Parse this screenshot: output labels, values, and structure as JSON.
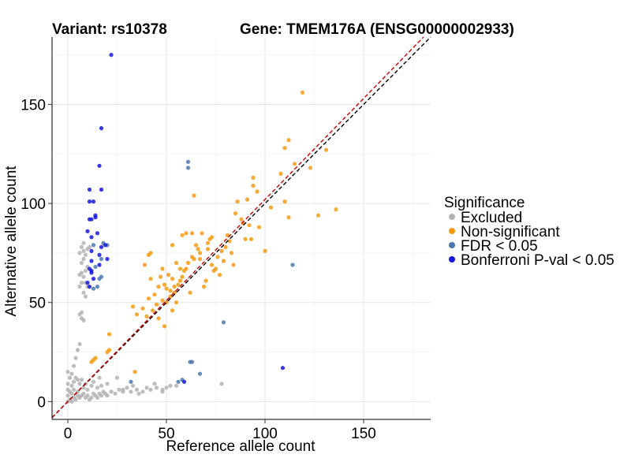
{
  "chart_data": {
    "type": "scatter",
    "title_variant": "Variant: rs10378",
    "title_gene": "Gene: TMEM176A (ENSG00000002933)",
    "xlabel": "Reference allele count",
    "ylabel": "Alternative allele count",
    "xlim": [
      -8,
      184
    ],
    "ylim": [
      -9,
      184
    ],
    "x_ticks": [
      0,
      50,
      100,
      150
    ],
    "y_ticks": [
      0,
      50,
      100,
      150
    ],
    "grid": true,
    "legend": {
      "title": "Significance",
      "placement": "right",
      "entries": [
        {
          "label": "Excluded",
          "color": "#b3b3b3"
        },
        {
          "label": "Non-significant",
          "color": "#f59a10"
        },
        {
          "label": "FDR < 0.05",
          "color": "#4a78b0"
        },
        {
          "label": "Bonferroni P-val < 0.05",
          "color": "#1515e0"
        }
      ]
    },
    "reference_lines": [
      {
        "slope": 1,
        "intercept": 0,
        "color": "#000000",
        "style": "dashed"
      },
      {
        "slope": 1.02,
        "intercept": 0,
        "color": "#cc0000",
        "style": "dashed"
      }
    ],
    "series": [
      {
        "name": "Excluded",
        "color": "#b3b3b3",
        "points": [
          [
            0,
            0
          ],
          [
            1,
            1
          ],
          [
            2,
            0
          ],
          [
            3,
            2
          ],
          [
            4,
            1
          ],
          [
            5,
            3
          ],
          [
            6,
            2
          ],
          [
            2,
            4
          ],
          [
            1,
            5
          ],
          [
            3,
            6
          ],
          [
            5,
            5
          ],
          [
            7,
            3
          ],
          [
            8,
            4
          ],
          [
            9,
            2
          ],
          [
            10,
            3
          ],
          [
            11,
            1
          ],
          [
            12,
            2
          ],
          [
            13,
            4
          ],
          [
            14,
            3
          ],
          [
            15,
            2
          ],
          [
            16,
            4
          ],
          [
            17,
            3
          ],
          [
            18,
            5
          ],
          [
            19,
            4
          ],
          [
            20,
            3
          ],
          [
            22,
            5
          ],
          [
            24,
            4
          ],
          [
            26,
            6
          ],
          [
            28,
            5
          ],
          [
            30,
            7
          ],
          [
            32,
            5
          ],
          [
            35,
            6
          ],
          [
            38,
            5
          ],
          [
            40,
            7
          ],
          [
            42,
            6
          ],
          [
            45,
            7
          ],
          [
            48,
            6
          ],
          [
            50,
            7
          ],
          [
            55,
            8
          ],
          [
            0,
            3
          ],
          [
            0,
            6
          ],
          [
            0,
            9
          ],
          [
            1,
            12
          ],
          [
            0,
            15
          ],
          [
            2,
            8
          ],
          [
            3,
            10
          ],
          [
            4,
            12
          ],
          [
            5,
            11
          ],
          [
            2,
            14
          ],
          [
            4,
            22
          ],
          [
            5,
            26
          ],
          [
            6,
            29
          ],
          [
            3,
            18
          ],
          [
            6,
            9
          ],
          [
            7,
            11
          ],
          [
            8,
            7
          ],
          [
            9,
            9
          ],
          [
            10,
            6
          ],
          [
            12,
            8
          ],
          [
            6,
            44
          ],
          [
            7,
            45
          ],
          [
            7,
            42
          ],
          [
            8,
            41
          ],
          [
            6,
            58
          ],
          [
            7,
            60
          ],
          [
            8,
            55
          ],
          [
            9,
            53
          ],
          [
            6,
            75
          ],
          [
            7,
            78
          ],
          [
            8,
            76
          ],
          [
            7,
            70
          ],
          [
            8,
            72
          ],
          [
            9,
            66
          ],
          [
            8,
            63
          ],
          [
            9,
            74
          ],
          [
            10,
            77
          ],
          [
            11,
            78
          ],
          [
            6,
            64
          ],
          [
            10,
            58
          ],
          [
            10,
            68
          ],
          [
            7,
            65
          ],
          [
            9,
            60
          ],
          [
            8,
            80
          ],
          [
            13,
            10
          ],
          [
            16,
            12
          ],
          [
            20,
            9
          ],
          [
            15,
            7
          ],
          [
            17,
            8
          ],
          [
            25,
            12
          ],
          [
            28,
            6
          ],
          [
            33,
            8
          ],
          [
            36,
            4
          ],
          [
            44,
            9
          ],
          [
            48,
            5
          ],
          [
            52,
            8
          ],
          [
            78,
            9
          ]
        ]
      },
      {
        "name": "Non-significant",
        "color": "#f59a10",
        "points": [
          [
            20,
            25
          ],
          [
            14,
            22
          ],
          [
            13,
            21
          ],
          [
            21,
            26
          ],
          [
            21,
            34
          ],
          [
            12,
            20
          ],
          [
            34,
            15
          ],
          [
            40,
            43
          ],
          [
            43,
            46
          ],
          [
            48,
            51
          ],
          [
            53,
            46
          ],
          [
            55,
            50
          ],
          [
            47,
            63
          ],
          [
            48,
            67
          ],
          [
            41,
            74
          ],
          [
            42,
            75
          ],
          [
            51,
            64
          ],
          [
            52,
            56
          ],
          [
            50,
            57
          ],
          [
            57,
            61
          ],
          [
            54,
            58
          ],
          [
            55,
            70
          ],
          [
            58,
            63
          ],
          [
            60,
            67
          ],
          [
            63,
            73
          ],
          [
            67,
            72
          ],
          [
            71,
            80
          ],
          [
            72,
            82
          ],
          [
            73,
            83
          ],
          [
            70,
            61
          ],
          [
            75,
            67
          ],
          [
            74,
            66
          ],
          [
            76,
            73
          ],
          [
            78,
            76
          ],
          [
            80,
            78
          ],
          [
            82,
            81
          ],
          [
            81,
            84
          ],
          [
            85,
            95
          ],
          [
            86,
            101
          ],
          [
            89,
            90
          ],
          [
            90,
            82
          ],
          [
            93,
            82
          ],
          [
            94,
            113
          ],
          [
            94,
            109
          ],
          [
            97,
            88
          ],
          [
            100,
            76
          ],
          [
            110,
            101
          ],
          [
            112,
            132
          ],
          [
            110,
            128
          ],
          [
            112,
            93
          ],
          [
            119,
            156
          ],
          [
            127,
            94
          ],
          [
            131,
            127
          ],
          [
            136,
            97
          ],
          [
            64,
            104
          ],
          [
            58,
            84
          ],
          [
            63,
            85
          ],
          [
            68,
            85
          ],
          [
            65,
            79
          ],
          [
            44,
            54
          ],
          [
            49,
            59
          ],
          [
            50,
            50
          ],
          [
            52,
            53
          ],
          [
            54,
            55
          ],
          [
            56,
            59
          ],
          [
            59,
            66
          ],
          [
            61,
            70
          ],
          [
            64,
            72
          ],
          [
            67,
            75
          ],
          [
            71,
            77
          ],
          [
            38,
            47
          ],
          [
            41,
            52
          ],
          [
            45,
            49
          ],
          [
            39,
            69
          ],
          [
            42,
            62
          ],
          [
            46,
            58
          ],
          [
            53,
            79
          ],
          [
            57,
            67
          ],
          [
            60,
            85
          ],
          [
            66,
            77
          ],
          [
            73,
            69
          ],
          [
            79,
            71
          ],
          [
            83,
            75
          ],
          [
            88,
            92
          ],
          [
            91,
            102
          ],
          [
            96,
            106
          ],
          [
            103,
            98
          ],
          [
            108,
            115
          ],
          [
            115,
            120
          ],
          [
            123,
            118
          ],
          [
            35,
            44
          ],
          [
            33,
            48
          ],
          [
            46,
            42
          ],
          [
            49,
            38
          ],
          [
            53,
            62
          ],
          [
            62,
            55
          ],
          [
            69,
            58
          ],
          [
            77,
            64
          ],
          [
            84,
            69
          ],
          [
            92,
            89
          ]
        ]
      },
      {
        "name": "FDR < 0.05",
        "color": "#4a78b0",
        "points": [
          [
            61,
            121
          ],
          [
            61,
            118
          ],
          [
            114,
            69
          ],
          [
            79,
            40
          ],
          [
            62,
            20
          ],
          [
            63,
            20
          ],
          [
            67,
            14
          ],
          [
            58,
            11
          ],
          [
            56,
            10
          ],
          [
            32,
            10
          ],
          [
            17,
            72
          ],
          [
            17,
            63
          ],
          [
            15,
            58
          ],
          [
            13,
            57
          ],
          [
            20,
            79
          ],
          [
            13,
            79
          ],
          [
            16,
            62
          ],
          [
            14,
            68
          ],
          [
            18,
            80
          ]
        ]
      },
      {
        "name": "Bonferroni P-val < 0.05",
        "color": "#1515e0",
        "points": [
          [
            22,
            175
          ],
          [
            17,
            138
          ],
          [
            16,
            119
          ],
          [
            11,
            107
          ],
          [
            17,
            107
          ],
          [
            11,
            101
          ],
          [
            13,
            101
          ],
          [
            11,
            92
          ],
          [
            14,
            93
          ],
          [
            12,
            92
          ],
          [
            14,
            94
          ],
          [
            10,
            86
          ],
          [
            12,
            83
          ],
          [
            15,
            85
          ],
          [
            12,
            76
          ],
          [
            16,
            74
          ],
          [
            12,
            71
          ],
          [
            11,
            67
          ],
          [
            12,
            66
          ],
          [
            16,
            69
          ],
          [
            12,
            65
          ],
          [
            10,
            60
          ],
          [
            11,
            58
          ],
          [
            13,
            62
          ],
          [
            17,
            78
          ],
          [
            19,
            79
          ],
          [
            109,
            17
          ],
          [
            59,
            10
          ],
          [
            20,
            72
          ]
        ]
      }
    ]
  }
}
